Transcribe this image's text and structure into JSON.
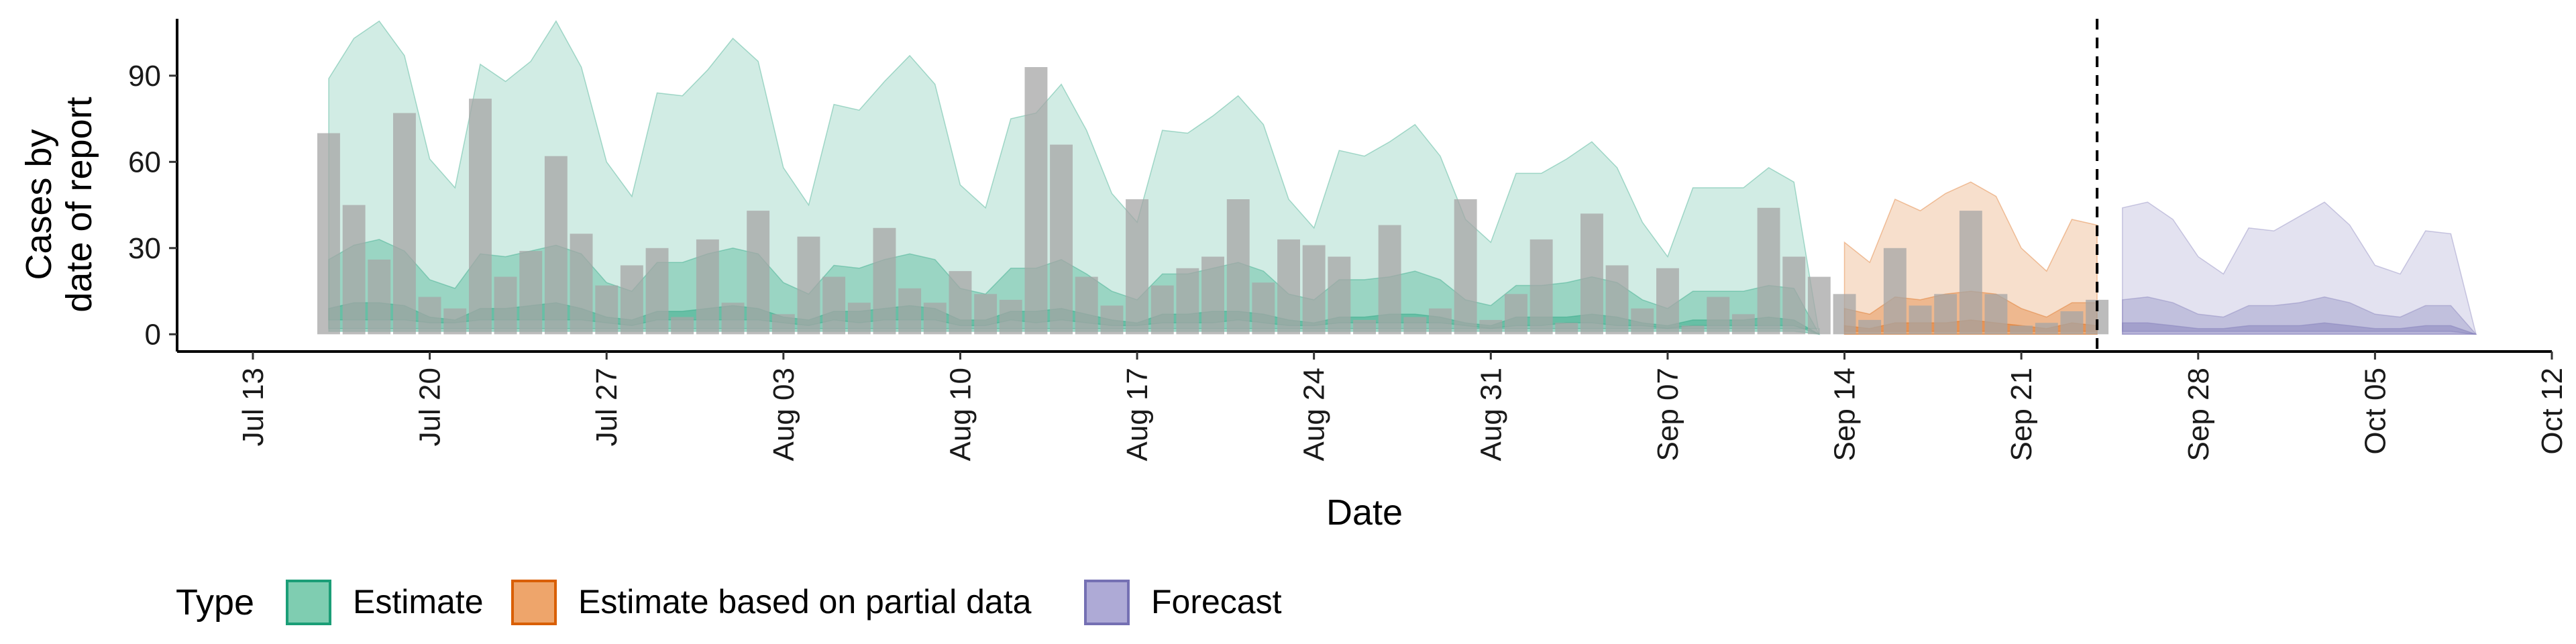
{
  "chart_data": {
    "type": "area",
    "xlabel": "Date",
    "ylabel_lines": [
      "Cases by",
      "date of report"
    ],
    "x_domain": [
      "2020-07-10",
      "2020-10-12"
    ],
    "ylim": [
      -6,
      114
    ],
    "yticks": [
      0,
      30,
      60,
      90
    ],
    "xticks": [
      {
        "date": "2020-07-13",
        "label": "Jul 13"
      },
      {
        "date": "2020-07-20",
        "label": "Jul 20"
      },
      {
        "date": "2020-07-27",
        "label": "Jul 27"
      },
      {
        "date": "2020-08-03",
        "label": "Aug 03"
      },
      {
        "date": "2020-08-10",
        "label": "Aug 10"
      },
      {
        "date": "2020-08-17",
        "label": "Aug 17"
      },
      {
        "date": "2020-08-24",
        "label": "Aug 24"
      },
      {
        "date": "2020-08-31",
        "label": "Aug 31"
      },
      {
        "date": "2020-09-07",
        "label": "Sep 07"
      },
      {
        "date": "2020-09-14",
        "label": "Sep 14"
      },
      {
        "date": "2020-09-21",
        "label": "Sep 21"
      },
      {
        "date": "2020-09-28",
        "label": "Sep 28"
      },
      {
        "date": "2020-10-05",
        "label": "Oct 05"
      },
      {
        "date": "2020-10-12",
        "label": "Oct 12"
      }
    ],
    "reference_line_date": "2020-09-24",
    "grid": false,
    "legend_position": "bottom",
    "legend": {
      "title": "Type",
      "items": [
        {
          "key": "estimate",
          "label": "Estimate",
          "fill": "#7fcdb1",
          "stroke": "#1b9e77"
        },
        {
          "key": "partial",
          "label": "Estimate based on partial data",
          "fill": "#eea56b",
          "stroke": "#d95f02"
        },
        {
          "key": "forecast",
          "label": "Forecast",
          "fill": "#aeaad6",
          "stroke": "#7570b3"
        }
      ]
    },
    "colors": {
      "estimate": "#1b9e77",
      "partial": "#d95f02",
      "forecast": "#7570b3",
      "bars": "#a6a6a6"
    },
    "reported_cases": {
      "start": "2020-07-16",
      "values": [
        70,
        45,
        26,
        77,
        13,
        9,
        82,
        20,
        29,
        62,
        35,
        17,
        24,
        30,
        6,
        33,
        11,
        43,
        7,
        34,
        20,
        11,
        37,
        16,
        11,
        22,
        14,
        12,
        93,
        66,
        20,
        10,
        47,
        17,
        23,
        27,
        47,
        18,
        33,
        31,
        27,
        5,
        38,
        6,
        9,
        47,
        5,
        14,
        33,
        4,
        42,
        24,
        9,
        23,
        3,
        13,
        7,
        44,
        27,
        20,
        14,
        5,
        30,
        10,
        14,
        43,
        14,
        3,
        4,
        8,
        12
      ]
    },
    "series": [
      {
        "name": "Estimate",
        "start": "2020-07-16",
        "low90": [
          2,
          2,
          2,
          2,
          2,
          2,
          2,
          2,
          2,
          2,
          2,
          2,
          2,
          2,
          2,
          2,
          2,
          2,
          2,
          2,
          2,
          2,
          2,
          2,
          2,
          2,
          2,
          2,
          2,
          2,
          2,
          2,
          2,
          2,
          2,
          2,
          2,
          2,
          2,
          2,
          2,
          2,
          2,
          2,
          2,
          2,
          2,
          2,
          2,
          2,
          2,
          2,
          2,
          2,
          2,
          2,
          2,
          2,
          2,
          2
        ],
        "high90": [
          89,
          103,
          109,
          97,
          61,
          51,
          94,
          88,
          95,
          109,
          93,
          60,
          48,
          84,
          83,
          92,
          103,
          95,
          58,
          45,
          80,
          78,
          88,
          97,
          87,
          52,
          44,
          75,
          77,
          87,
          71,
          49,
          39,
          71,
          70,
          76,
          83,
          73,
          47,
          37,
          64,
          62,
          67,
          73,
          62,
          40,
          32,
          56,
          56,
          61,
          67,
          58,
          39,
          27,
          51,
          51,
          51,
          58,
          53,
          0
        ],
        "low50": [
          5,
          5,
          5,
          5,
          4,
          4,
          5,
          5,
          5,
          5,
          5,
          4,
          3,
          5,
          5,
          5,
          5,
          5,
          4,
          3,
          5,
          4,
          5,
          5,
          5,
          3,
          3,
          5,
          4,
          5,
          4,
          3,
          3,
          4,
          4,
          4,
          5,
          4,
          3,
          3,
          4,
          4,
          4,
          4,
          4,
          3,
          2,
          3,
          3,
          4,
          4,
          3,
          3,
          2,
          3,
          3,
          3,
          3,
          3,
          0
        ],
        "high50": [
          26,
          31,
          33,
          29,
          19,
          16,
          28,
          27,
          29,
          31,
          28,
          18,
          15,
          25,
          25,
          28,
          30,
          28,
          18,
          14,
          24,
          23,
          26,
          28,
          26,
          16,
          14,
          23,
          23,
          26,
          21,
          15,
          12,
          21,
          21,
          23,
          25,
          22,
          14,
          12,
          19,
          19,
          20,
          22,
          19,
          12,
          10,
          17,
          17,
          18,
          20,
          18,
          12,
          9,
          15,
          15,
          15,
          17,
          16,
          0
        ],
        "low20": [
          1,
          1,
          1,
          1,
          1,
          1,
          1,
          1,
          1,
          1,
          1,
          1,
          1,
          1,
          1,
          1,
          1,
          1,
          1,
          1,
          1,
          1,
          1,
          1,
          1,
          1,
          1,
          1,
          1,
          1,
          1,
          1,
          1,
          1,
          1,
          1,
          1,
          1,
          1,
          1,
          1,
          1,
          1,
          1,
          1,
          1,
          1,
          1,
          1,
          1,
          1,
          1,
          1,
          1,
          1,
          1,
          1,
          1,
          1,
          0
        ],
        "high20": [
          9,
          11,
          11,
          10,
          6,
          5,
          9,
          9,
          10,
          11,
          9,
          6,
          5,
          8,
          8,
          9,
          10,
          9,
          6,
          5,
          8,
          8,
          9,
          10,
          9,
          5,
          5,
          8,
          8,
          9,
          7,
          5,
          4,
          7,
          7,
          8,
          8,
          7,
          5,
          4,
          6,
          6,
          7,
          7,
          6,
          4,
          3,
          6,
          6,
          6,
          7,
          6,
          4,
          3,
          5,
          5,
          5,
          6,
          5,
          0
        ]
      },
      {
        "name": "Estimate based on partial data",
        "start": "2020-09-14",
        "low90": [
          0,
          0,
          0,
          0,
          0,
          0,
          0,
          0,
          0,
          0,
          0
        ],
        "high90": [
          32,
          25,
          47,
          43,
          49,
          53,
          48,
          30,
          22,
          40,
          38
        ],
        "low50": [
          1,
          1,
          1,
          1,
          1,
          1,
          1,
          1,
          1,
          1,
          1
        ],
        "high50": [
          9,
          7,
          13,
          12,
          14,
          15,
          14,
          9,
          6,
          11,
          11
        ],
        "low20": [
          0,
          0,
          0,
          0,
          0,
          0,
          0,
          0,
          0,
          0,
          0
        ],
        "high20": [
          3,
          2,
          4,
          4,
          4,
          5,
          4,
          3,
          2,
          4,
          3
        ]
      },
      {
        "name": "Forecast",
        "start": "2020-09-25",
        "low90": [
          0,
          0,
          0,
          0,
          0,
          0,
          0,
          0,
          0,
          0,
          0,
          0,
          0,
          0,
          0
        ],
        "high90": [
          44,
          46,
          40,
          27,
          21,
          37,
          36,
          41,
          46,
          38,
          24,
          21,
          36,
          35,
          0
        ],
        "low50": [
          1,
          1,
          1,
          1,
          1,
          1,
          1,
          1,
          1,
          1,
          1,
          1,
          1,
          1,
          0
        ],
        "high50": [
          12,
          13,
          11,
          7,
          6,
          10,
          10,
          11,
          13,
          11,
          7,
          6,
          10,
          10,
          0
        ],
        "low20": [
          0,
          0,
          0,
          0,
          0,
          0,
          0,
          0,
          0,
          0,
          0,
          0,
          0,
          0,
          0
        ],
        "high20": [
          4,
          4,
          3,
          2,
          2,
          3,
          3,
          3,
          4,
          3,
          2,
          2,
          3,
          3,
          0
        ]
      }
    ]
  }
}
